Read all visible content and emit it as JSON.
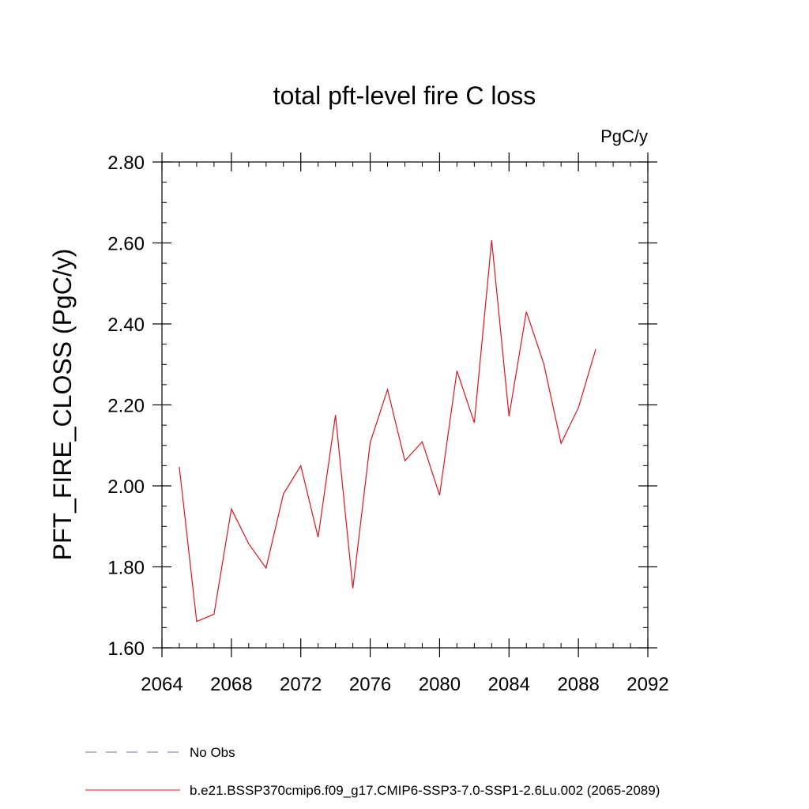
{
  "chart_data": {
    "type": "line",
    "title": "total pft-level fire C loss",
    "units": "PgC/y",
    "ylabel": "PFT_FIRE_CLOSS  (PgC/y)",
    "xlabel": "",
    "xlim": [
      2064,
      2092
    ],
    "ylim": [
      1.6,
      2.8
    ],
    "xticks": [
      2064,
      2068,
      2072,
      2076,
      2080,
      2084,
      2088,
      2092
    ],
    "xtick_labels": [
      "2064",
      "2068",
      "2072",
      "2076",
      "2080",
      "2084",
      "2088",
      "2092"
    ],
    "yticks": [
      1.6,
      1.8,
      2.0,
      2.2,
      2.4,
      2.6,
      2.8
    ],
    "ytick_labels": [
      "1.60",
      "1.80",
      "2.00",
      "2.20",
      "2.40",
      "2.60",
      "2.80"
    ],
    "grid": false,
    "legend_position": "bottom",
    "series": [
      {
        "name": "No Obs",
        "color": "#7a6fb0",
        "style": "dashed",
        "x": [],
        "y": []
      },
      {
        "name": "b.e21.BSSP370cmip6.f09_g17.CMIP6-SSP3-7.0-SSP1-2.6Lu.002 (2065-2089)",
        "color": "#e8101c",
        "style": "solid",
        "x": [
          2065,
          2066,
          2067,
          2068,
          2069,
          2070,
          2071,
          2072,
          2073,
          2074,
          2075,
          2076,
          2077,
          2078,
          2079,
          2080,
          2081,
          2082,
          2083,
          2084,
          2085,
          2086,
          2087,
          2088,
          2089
        ],
        "y": [
          2.047,
          1.665,
          1.683,
          1.943,
          1.857,
          1.797,
          1.98,
          2.05,
          1.873,
          2.175,
          1.747,
          2.107,
          2.238,
          2.062,
          2.109,
          1.977,
          2.284,
          2.156,
          2.607,
          2.172,
          2.43,
          2.302,
          2.105,
          2.193,
          2.338
        ]
      }
    ]
  }
}
